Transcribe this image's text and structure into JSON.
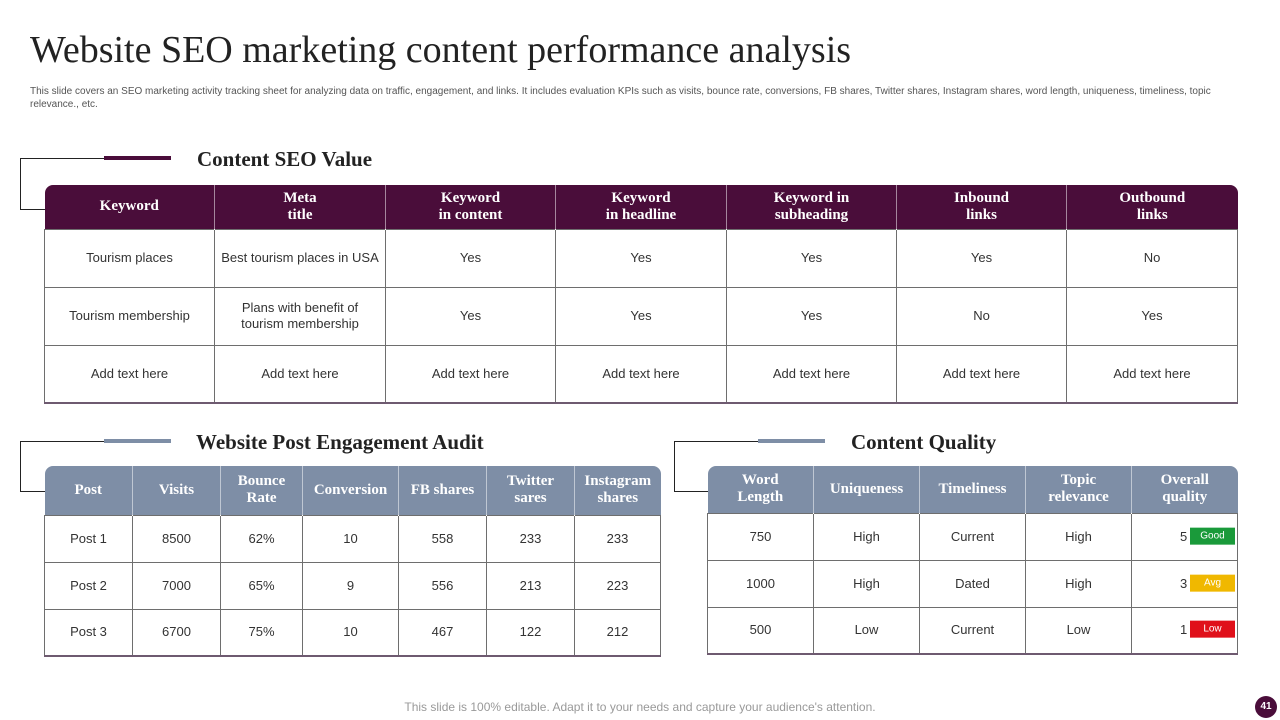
{
  "title": "Website SEO marketing content performance analysis",
  "subtitle": "This slide covers an SEO marketing activity tracking sheet for analyzing data on traffic, engagement, and links. It includes evaluation KPIs such as visits, bounce rate, conversions, FB shares, Twitter shares, Instagram shares, word length, uniqueness, timeliness, topic relevance., etc.",
  "colors": {
    "seo_header": "#4a0d3a",
    "sub_header": "#7e8ea6",
    "good": "#1a9a3a",
    "avg": "#f0b800",
    "low": "#e0101a"
  },
  "seo": {
    "title": "Content SEO Value",
    "headers": [
      "Keyword",
      "Meta\ntitle",
      "Keyword\nin content",
      "Keyword\nin headline",
      "Keyword in\nsubheading",
      "Inbound\nlinks",
      "Outbound\nlinks"
    ],
    "rows": [
      [
        "Tourism places",
        "Best tourism places in USA",
        "Yes",
        "Yes",
        "Yes",
        "Yes",
        "No"
      ],
      [
        "Tourism membership",
        "Plans with benefit of tourism membership",
        "Yes",
        "Yes",
        "Yes",
        "No",
        "Yes"
      ],
      [
        "Add text here",
        "Add text here",
        "Add text here",
        "Add text here",
        "Add text here",
        "Add text here",
        "Add text here"
      ]
    ]
  },
  "engagement": {
    "title": "Website Post Engagement Audit",
    "headers": [
      "Post",
      "Visits",
      "Bounce\nRate",
      "Conversion",
      "FB shares",
      "Twitter\nsares",
      "Instagram\nshares"
    ],
    "rows": [
      [
        "Post 1",
        "8500",
        "62%",
        "10",
        "558",
        "233",
        "233"
      ],
      [
        "Post 2",
        "7000",
        "65%",
        "9",
        "556",
        "213",
        "223"
      ],
      [
        "Post 3",
        "6700",
        "75%",
        "10",
        "467",
        "122",
        "212"
      ]
    ]
  },
  "quality": {
    "title": "Content Quality",
    "headers": [
      "Word\nLength",
      "Uniqueness",
      "Timeliness",
      "Topic\nrelevance",
      "Overall\nquality"
    ],
    "rows": [
      {
        "cells": [
          "750",
          "High",
          "Current",
          "High"
        ],
        "score": "5",
        "rating": "Good",
        "rating_color": "#1a9a3a"
      },
      {
        "cells": [
          "1000",
          "High",
          "Dated",
          "High"
        ],
        "score": "3",
        "rating": "Avg",
        "rating_color": "#f0b800"
      },
      {
        "cells": [
          "500",
          "Low",
          "Current",
          "Low"
        ],
        "score": "1",
        "rating": "Low",
        "rating_color": "#e0101a"
      }
    ]
  },
  "footer": "This slide is 100% editable. Adapt it to your needs and capture your audience's attention.",
  "page_number": "41"
}
